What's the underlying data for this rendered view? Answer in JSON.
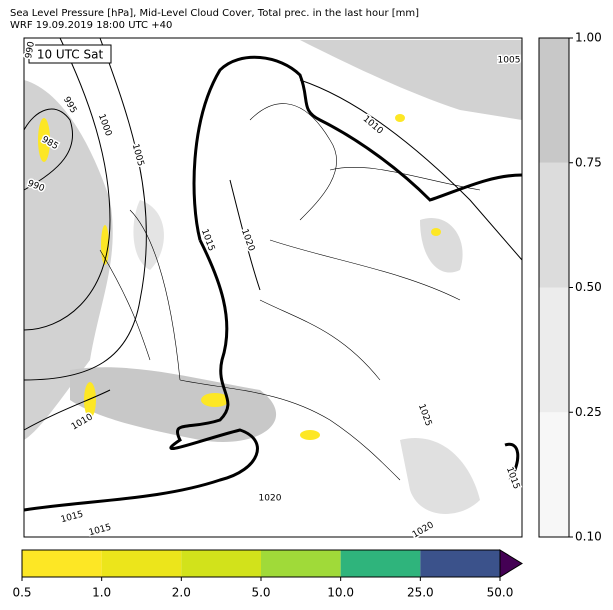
{
  "header": {
    "title": "Sea Level Pressure [hPa], Mid-Level Cloud Cover, Total prec. in the last hour [mm]",
    "subtitle": "WRF 19.09.2019 18:00 UTC +40"
  },
  "map": {
    "time_label": "10 UTC Sat",
    "isobar_labels": [
      990,
      995,
      1000,
      1005,
      985,
      990,
      1015,
      1020,
      1010,
      1005,
      1025,
      1020,
      1010,
      1015,
      1015,
      1020,
      1015
    ]
  },
  "cloud_colorbar": {
    "ticks": [
      {
        "value": 0.1,
        "label": "0.10"
      },
      {
        "value": 0.25,
        "label": "0.25"
      },
      {
        "value": 0.5,
        "label": "0.50"
      },
      {
        "value": 0.75,
        "label": "0.75"
      },
      {
        "value": 1.0,
        "label": "1.00"
      }
    ],
    "colors": [
      "#f7f7f7",
      "#ececec",
      "#dcdcdc",
      "#c8c8c8"
    ]
  },
  "precip_colorbar": {
    "ticks": [
      {
        "value": 0.5,
        "label": "0.5"
      },
      {
        "value": 1.0,
        "label": "1.0"
      },
      {
        "value": 2.0,
        "label": "2.0"
      },
      {
        "value": 5.0,
        "label": "5.0"
      },
      {
        "value": 10.0,
        "label": "10.0"
      },
      {
        "value": 25.0,
        "label": "25.0"
      },
      {
        "value": 50.0,
        "label": "50.0"
      }
    ],
    "colors": [
      "#fde725",
      "#ece51b",
      "#d2e21b",
      "#a0da39",
      "#2fb47c",
      "#3b528b"
    ],
    "extend_color": "#440154"
  }
}
